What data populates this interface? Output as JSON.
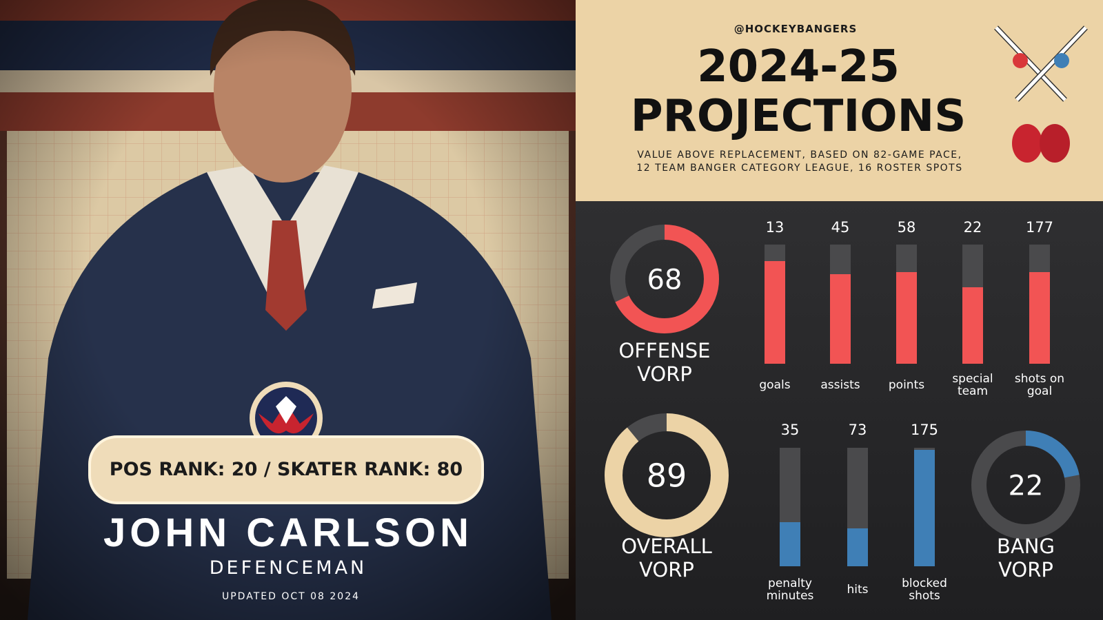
{
  "header": {
    "handle": "@HOCKEYBANGERS",
    "title": [
      "2024-25",
      "PROJECTIONS"
    ],
    "subtitle": [
      "VALUE ABOVE REPLACEMENT, BASED ON 82-GAME PACE,",
      "12 TEAM BANGER CATEGORY LEAGUE, 16 ROSTER SPOTS"
    ]
  },
  "player": {
    "rank": "POS RANK: 20 / SKATER RANK: 80",
    "name": "JOHN CARLSON",
    "position": "DEFENCEMAN",
    "updated": "UPDATED OCT 08 2024"
  },
  "donut_range": [
    0,
    100
  ],
  "donuts": [
    {
      "label": [
        "OFFENSE",
        "VORP"
      ],
      "value": 68,
      "color": "#f25454"
    },
    {
      "label": [
        "OVERALL",
        "VORP"
      ],
      "value": 89,
      "color": "#ecd3a6"
    },
    {
      "label": [
        "BANG",
        "VORP"
      ],
      "value": 22,
      "color": "#3f7fb6"
    }
  ],
  "bar_range": [
    0,
    100
  ],
  "offense_bars": {
    "color": "#f25454",
    "categories": [
      "goals",
      "assists",
      "points",
      "special team",
      "shots on goal"
    ],
    "values": [
      13,
      45,
      58,
      22,
      177
    ],
    "fill": [
      86,
      75,
      77,
      64,
      77
    ]
  },
  "bang_bars": {
    "color": "#3f7fb6",
    "categories": [
      "penalty minutes",
      "hits",
      "blocked shots"
    ],
    "values": [
      35,
      73,
      175
    ],
    "fill": [
      37,
      32,
      98
    ]
  }
}
